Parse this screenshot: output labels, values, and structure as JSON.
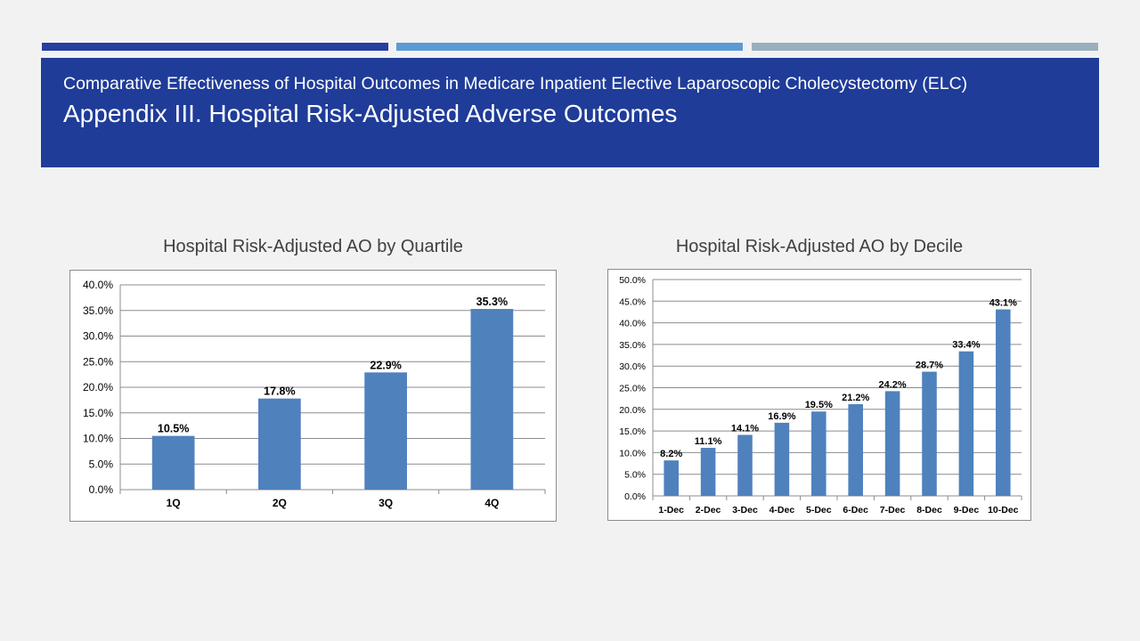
{
  "colors": {
    "background": "#f2f2f2",
    "header_bg": "#1f3c99",
    "bar": "#4f81bd",
    "accent_bars": [
      "#2540a0",
      "#5b9bd5",
      "#9aafbd"
    ]
  },
  "header": {
    "subtitle": "Comparative Effectiveness of Hospital Outcomes in Medicare Inpatient Elective Laparoscopic Cholecystectomy (ELC)",
    "title": "Appendix III. Hospital Risk-Adjusted Adverse Outcomes"
  },
  "chart_data": [
    {
      "type": "bar",
      "title": "Hospital Risk-Adjusted AO by Quartile",
      "categories": [
        "1Q",
        "2Q",
        "3Q",
        "4Q"
      ],
      "values": [
        10.5,
        17.8,
        22.9,
        35.3
      ],
      "data_labels": [
        "10.5%",
        "17.8%",
        "22.9%",
        "35.3%"
      ],
      "ylim": [
        0,
        40
      ],
      "yticks": [
        "0.0%",
        "5.0%",
        "10.0%",
        "15.0%",
        "20.0%",
        "25.0%",
        "30.0%",
        "35.0%",
        "40.0%"
      ],
      "grid": true,
      "legend": "none"
    },
    {
      "type": "bar",
      "title": "Hospital Risk-Adjusted AO by Decile",
      "categories": [
        "1-Dec",
        "2-Dec",
        "3-Dec",
        "4-Dec",
        "5-Dec",
        "6-Dec",
        "7-Dec",
        "8-Dec",
        "9-Dec",
        "10-Dec"
      ],
      "values": [
        8.2,
        11.1,
        14.1,
        16.9,
        19.5,
        21.2,
        24.2,
        28.7,
        33.4,
        43.1
      ],
      "data_labels": [
        "8.2%",
        "11.1%",
        "14.1%",
        "16.9%",
        "19.5%",
        "21.2%",
        "24.2%",
        "28.7%",
        "33.4%",
        "43.1%"
      ],
      "ylim": [
        0,
        50
      ],
      "yticks": [
        "0.0%",
        "5.0%",
        "10.0%",
        "15.0%",
        "20.0%",
        "25.0%",
        "30.0%",
        "35.0%",
        "40.0%",
        "45.0%",
        "50.0%"
      ],
      "grid": true,
      "legend": "none"
    }
  ]
}
